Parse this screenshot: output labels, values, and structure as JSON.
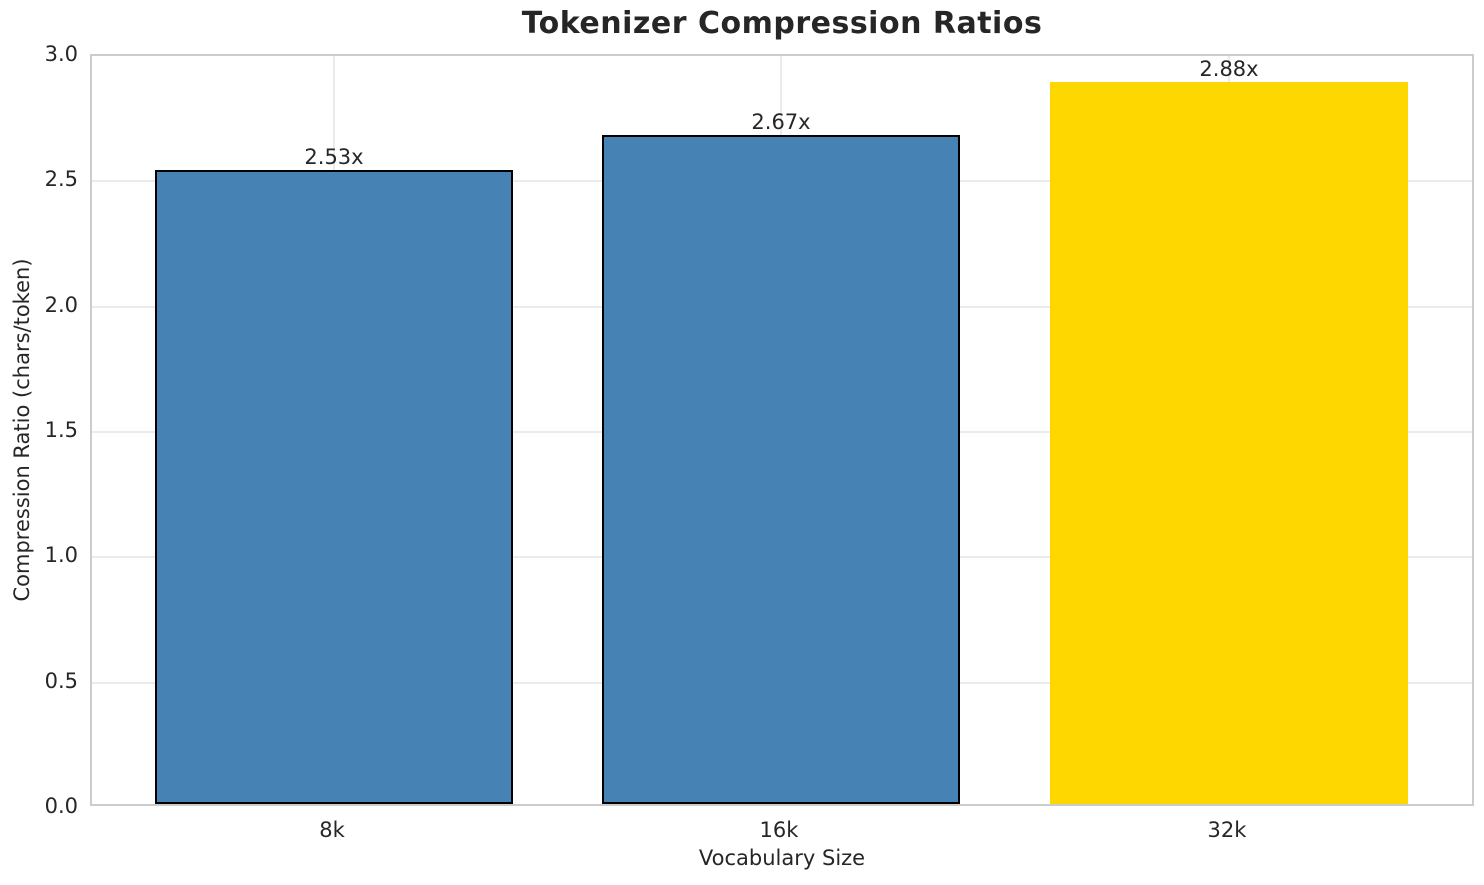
{
  "chart_data": {
    "type": "bar",
    "title": "Tokenizer Compression Ratios",
    "xlabel": "Vocabulary Size",
    "ylabel": "Compression Ratio (chars/token)",
    "categories": [
      "8k",
      "16k",
      "32k"
    ],
    "values": [
      2.53,
      2.67,
      2.88
    ],
    "bar_labels": [
      "2.53x",
      "2.67x",
      "2.88x"
    ],
    "bar_colors": [
      "#4682B4",
      "#4682B4",
      "#FFD700"
    ],
    "bar_edge_colors": [
      "#000000",
      "#000000",
      "none"
    ],
    "ylim": [
      0,
      3.0
    ],
    "yticks": [
      "0.0",
      "0.5",
      "1.0",
      "1.5",
      "2.0",
      "2.5",
      "3.0"
    ],
    "grid": "both",
    "legend_position": "none"
  },
  "colors": {
    "bar_blue": "#4682B4",
    "bar_gold": "#FFD700",
    "grid": "#EBEBEB",
    "spine": "#CCCCCC",
    "text": "#262626",
    "background": "#FFFFFF"
  }
}
